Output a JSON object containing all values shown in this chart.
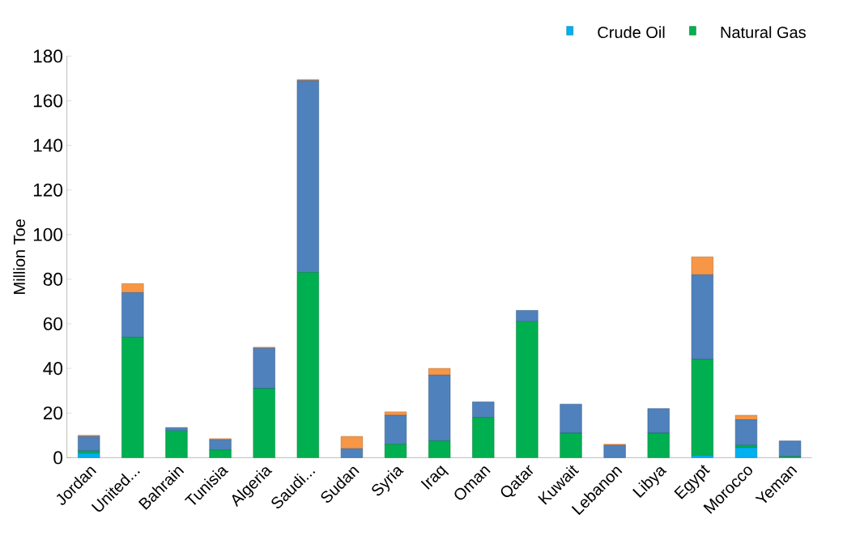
{
  "chart_data": {
    "type": "bar",
    "stacked": true,
    "ylabel": "Million Toe",
    "categories": [
      "Jordan",
      "United...",
      "Bahrain",
      "Tunisia",
      "Algeria",
      "Saudi...",
      "Sudan",
      "Syria",
      "Iraq",
      "Oman",
      "Qatar",
      "Kuwait",
      "Lebanon",
      "Libya",
      "Egypt",
      "Morocco",
      "Yeman"
    ],
    "series": [
      {
        "name": "Crude Oil",
        "color": "#00b0f0",
        "values": [
          2,
          0,
          0,
          0,
          0,
          0,
          0,
          0,
          0,
          0,
          0,
          0,
          0,
          0,
          1,
          4.5,
          0
        ]
      },
      {
        "name": "Natural Gas",
        "color": "#00b050",
        "values": [
          1,
          54,
          12,
          3.5,
          31,
          83,
          0,
          6,
          7.5,
          18,
          61,
          11,
          0,
          11,
          43,
          1,
          0.5
        ]
      },
      {
        "color": "#4f81bd",
        "values": [
          6.5,
          20,
          1.5,
          4.5,
          18,
          86,
          4,
          13,
          29.5,
          7,
          5,
          13,
          5.5,
          11,
          38,
          11.5,
          7
        ]
      },
      {
        "color": "#f79646",
        "values": [
          0.5,
          4,
          0,
          0.5,
          0.5,
          0.5,
          5.5,
          1.5,
          3,
          0,
          0,
          0,
          0.5,
          0,
          8,
          2,
          0
        ]
      }
    ],
    "ylim": [
      0,
      180
    ],
    "yticks": [
      0,
      20,
      40,
      60,
      80,
      100,
      120,
      140,
      160,
      180
    ],
    "grid": false,
    "legend": "top right"
  }
}
